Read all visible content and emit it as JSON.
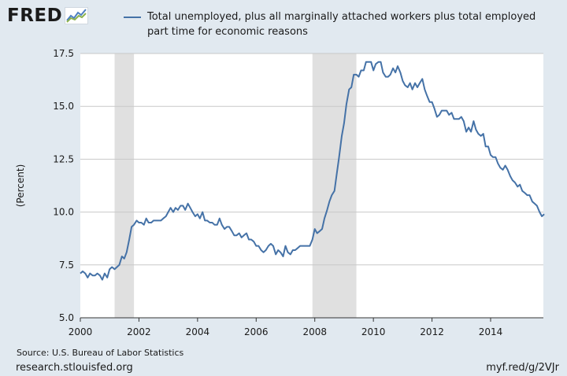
{
  "header": {
    "logo_text": "FRED",
    "logo_icon": "fred-chart-icon",
    "legend_color": "#4572a7"
  },
  "footer": {
    "source": "Source: U.S. Bureau of Labor Statistics",
    "site": "research.stlouisfed.org",
    "short_link": "myf.red/g/2VJr"
  },
  "colors": {
    "background": "#e1e9f0",
    "plot_background": "#ffffff",
    "recession_shading": "#e0e0e0",
    "line": "#4572a7"
  },
  "chart_data": {
    "type": "line",
    "title": "",
    "xlabel": "",
    "ylabel": "(Percent)",
    "xlim": [
      2000,
      2015.8
    ],
    "ylim": [
      5.0,
      17.5
    ],
    "x_ticks": [
      2000,
      2002,
      2004,
      2006,
      2008,
      2010,
      2012,
      2014
    ],
    "x_tick_labels": [
      "2000",
      "2002",
      "2004",
      "2006",
      "2008",
      "2010",
      "2012",
      "2014"
    ],
    "y_ticks": [
      5.0,
      7.5,
      10.0,
      12.5,
      15.0,
      17.5
    ],
    "y_tick_labels": [
      "5.0",
      "7.5",
      "10.0",
      "12.5",
      "15.0",
      "17.5"
    ],
    "grid": "horizontal",
    "legend_position": "top",
    "recessions": [
      {
        "start": 2001.17,
        "end": 2001.83
      },
      {
        "start": 2007.92,
        "end": 2009.42
      }
    ],
    "series": [
      {
        "name": "Total unemployed, plus all marginally attached workers plus total employed part time for economic reasons",
        "color": "#4572a7",
        "points": [
          [
            2000.0,
            7.1
          ],
          [
            2000.08,
            7.2
          ],
          [
            2000.17,
            7.1
          ],
          [
            2000.25,
            6.9
          ],
          [
            2000.33,
            7.1
          ],
          [
            2000.42,
            7.0
          ],
          [
            2000.5,
            7.0
          ],
          [
            2000.58,
            7.1
          ],
          [
            2000.67,
            7.0
          ],
          [
            2000.75,
            6.8
          ],
          [
            2000.83,
            7.1
          ],
          [
            2000.92,
            6.9
          ],
          [
            2001.0,
            7.3
          ],
          [
            2001.08,
            7.4
          ],
          [
            2001.17,
            7.3
          ],
          [
            2001.25,
            7.4
          ],
          [
            2001.33,
            7.5
          ],
          [
            2001.42,
            7.9
          ],
          [
            2001.5,
            7.8
          ],
          [
            2001.58,
            8.1
          ],
          [
            2001.67,
            8.7
          ],
          [
            2001.75,
            9.3
          ],
          [
            2001.83,
            9.4
          ],
          [
            2001.92,
            9.6
          ],
          [
            2002.0,
            9.5
          ],
          [
            2002.08,
            9.5
          ],
          [
            2002.17,
            9.4
          ],
          [
            2002.25,
            9.7
          ],
          [
            2002.33,
            9.5
          ],
          [
            2002.42,
            9.5
          ],
          [
            2002.5,
            9.6
          ],
          [
            2002.58,
            9.6
          ],
          [
            2002.67,
            9.6
          ],
          [
            2002.75,
            9.6
          ],
          [
            2002.83,
            9.7
          ],
          [
            2002.92,
            9.8
          ],
          [
            2003.0,
            10.0
          ],
          [
            2003.08,
            10.2
          ],
          [
            2003.17,
            10.0
          ],
          [
            2003.25,
            10.2
          ],
          [
            2003.33,
            10.1
          ],
          [
            2003.42,
            10.3
          ],
          [
            2003.5,
            10.3
          ],
          [
            2003.58,
            10.1
          ],
          [
            2003.67,
            10.4
          ],
          [
            2003.75,
            10.2
          ],
          [
            2003.83,
            10.0
          ],
          [
            2003.92,
            9.8
          ],
          [
            2004.0,
            9.9
          ],
          [
            2004.08,
            9.7
          ],
          [
            2004.17,
            10.0
          ],
          [
            2004.25,
            9.6
          ],
          [
            2004.33,
            9.6
          ],
          [
            2004.42,
            9.5
          ],
          [
            2004.5,
            9.5
          ],
          [
            2004.58,
            9.4
          ],
          [
            2004.67,
            9.4
          ],
          [
            2004.75,
            9.7
          ],
          [
            2004.83,
            9.4
          ],
          [
            2004.92,
            9.2
          ],
          [
            2005.0,
            9.3
          ],
          [
            2005.08,
            9.3
          ],
          [
            2005.17,
            9.1
          ],
          [
            2005.25,
            8.9
          ],
          [
            2005.33,
            8.9
          ],
          [
            2005.42,
            9.0
          ],
          [
            2005.5,
            8.8
          ],
          [
            2005.58,
            8.9
          ],
          [
            2005.67,
            9.0
          ],
          [
            2005.75,
            8.7
          ],
          [
            2005.83,
            8.7
          ],
          [
            2005.92,
            8.6
          ],
          [
            2006.0,
            8.4
          ],
          [
            2006.08,
            8.4
          ],
          [
            2006.17,
            8.2
          ],
          [
            2006.25,
            8.1
          ],
          [
            2006.33,
            8.2
          ],
          [
            2006.42,
            8.4
          ],
          [
            2006.5,
            8.5
          ],
          [
            2006.58,
            8.4
          ],
          [
            2006.67,
            8.0
          ],
          [
            2006.75,
            8.2
          ],
          [
            2006.83,
            8.1
          ],
          [
            2006.92,
            7.9
          ],
          [
            2007.0,
            8.4
          ],
          [
            2007.08,
            8.1
          ],
          [
            2007.17,
            8.0
          ],
          [
            2007.25,
            8.2
          ],
          [
            2007.33,
            8.2
          ],
          [
            2007.42,
            8.3
          ],
          [
            2007.5,
            8.4
          ],
          [
            2007.58,
            8.4
          ],
          [
            2007.67,
            8.4
          ],
          [
            2007.75,
            8.4
          ],
          [
            2007.83,
            8.4
          ],
          [
            2007.92,
            8.7
          ],
          [
            2008.0,
            9.2
          ],
          [
            2008.08,
            9.0
          ],
          [
            2008.17,
            9.1
          ],
          [
            2008.25,
            9.2
          ],
          [
            2008.33,
            9.7
          ],
          [
            2008.42,
            10.1
          ],
          [
            2008.5,
            10.5
          ],
          [
            2008.58,
            10.8
          ],
          [
            2008.67,
            11.0
          ],
          [
            2008.75,
            11.8
          ],
          [
            2008.83,
            12.6
          ],
          [
            2008.92,
            13.6
          ],
          [
            2009.0,
            14.2
          ],
          [
            2009.08,
            15.1
          ],
          [
            2009.17,
            15.8
          ],
          [
            2009.25,
            15.9
          ],
          [
            2009.33,
            16.5
          ],
          [
            2009.42,
            16.5
          ],
          [
            2009.5,
            16.4
          ],
          [
            2009.58,
            16.7
          ],
          [
            2009.67,
            16.7
          ],
          [
            2009.75,
            17.1
          ],
          [
            2009.83,
            17.1
          ],
          [
            2009.92,
            17.1
          ],
          [
            2010.0,
            16.7
          ],
          [
            2010.08,
            17.0
          ],
          [
            2010.17,
            17.1
          ],
          [
            2010.25,
            17.1
          ],
          [
            2010.33,
            16.6
          ],
          [
            2010.42,
            16.4
          ],
          [
            2010.5,
            16.4
          ],
          [
            2010.58,
            16.5
          ],
          [
            2010.67,
            16.8
          ],
          [
            2010.75,
            16.6
          ],
          [
            2010.83,
            16.9
          ],
          [
            2010.92,
            16.6
          ],
          [
            2011.0,
            16.2
          ],
          [
            2011.08,
            16.0
          ],
          [
            2011.17,
            15.9
          ],
          [
            2011.25,
            16.1
          ],
          [
            2011.33,
            15.8
          ],
          [
            2011.42,
            16.1
          ],
          [
            2011.5,
            15.9
          ],
          [
            2011.58,
            16.1
          ],
          [
            2011.67,
            16.3
          ],
          [
            2011.75,
            15.8
          ],
          [
            2011.83,
            15.5
          ],
          [
            2011.92,
            15.2
          ],
          [
            2012.0,
            15.2
          ],
          [
            2012.08,
            14.9
          ],
          [
            2012.17,
            14.5
          ],
          [
            2012.25,
            14.6
          ],
          [
            2012.33,
            14.8
          ],
          [
            2012.42,
            14.8
          ],
          [
            2012.5,
            14.8
          ],
          [
            2012.58,
            14.6
          ],
          [
            2012.67,
            14.7
          ],
          [
            2012.75,
            14.4
          ],
          [
            2012.83,
            14.4
          ],
          [
            2012.92,
            14.4
          ],
          [
            2013.0,
            14.5
          ],
          [
            2013.08,
            14.3
          ],
          [
            2013.17,
            13.8
          ],
          [
            2013.25,
            14.0
          ],
          [
            2013.33,
            13.8
          ],
          [
            2013.42,
            14.3
          ],
          [
            2013.5,
            13.9
          ],
          [
            2013.58,
            13.7
          ],
          [
            2013.67,
            13.6
          ],
          [
            2013.75,
            13.7
          ],
          [
            2013.83,
            13.1
          ],
          [
            2013.92,
            13.1
          ],
          [
            2014.0,
            12.7
          ],
          [
            2014.08,
            12.6
          ],
          [
            2014.17,
            12.6
          ],
          [
            2014.25,
            12.3
          ],
          [
            2014.33,
            12.1
          ],
          [
            2014.42,
            12.0
          ],
          [
            2014.5,
            12.2
          ],
          [
            2014.58,
            12.0
          ],
          [
            2014.67,
            11.7
          ],
          [
            2014.75,
            11.5
          ],
          [
            2014.83,
            11.4
          ],
          [
            2014.92,
            11.2
          ],
          [
            2015.0,
            11.3
          ],
          [
            2015.08,
            11.0
          ],
          [
            2015.17,
            10.9
          ],
          [
            2015.25,
            10.8
          ],
          [
            2015.33,
            10.8
          ],
          [
            2015.42,
            10.5
          ],
          [
            2015.5,
            10.4
          ],
          [
            2015.58,
            10.3
          ],
          [
            2015.67,
            10.0
          ],
          [
            2015.75,
            9.8
          ],
          [
            2015.83,
            9.9
          ]
        ]
      }
    ]
  }
}
